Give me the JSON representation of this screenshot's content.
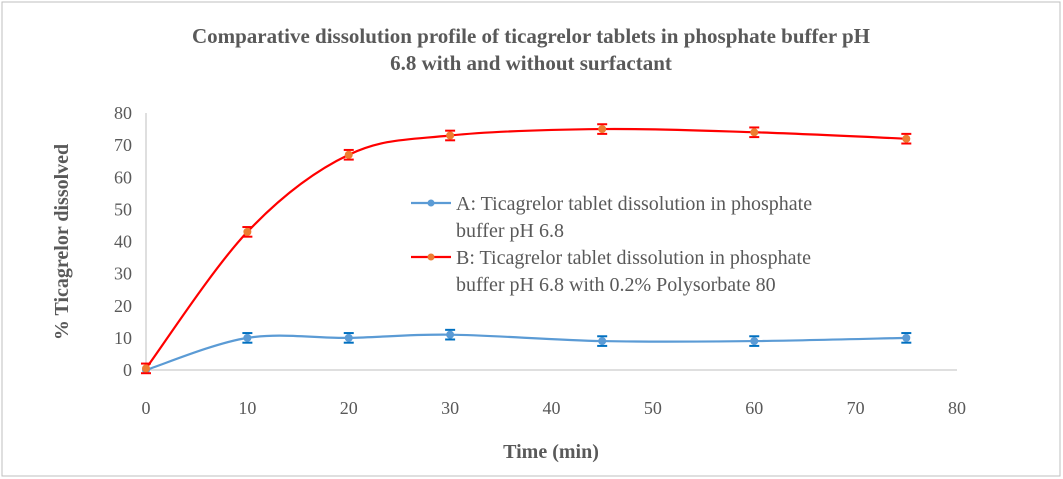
{
  "chart_data": {
    "type": "line",
    "title": "Comparative dissolution profile of ticagrelor tablets in phosphate buffer pH",
    "title_line2": "6.8 with and without surfactant",
    "xlabel": "Time (min)",
    "ylabel": "% Ticagrelor dissolved",
    "xlim": [
      0,
      80
    ],
    "ylim": [
      0,
      80
    ],
    "xticks": [
      0,
      10,
      20,
      30,
      40,
      50,
      60,
      70,
      80
    ],
    "yticks": [
      0,
      10,
      20,
      30,
      40,
      50,
      60,
      70,
      80
    ],
    "grid": false,
    "legend_position": "center-right",
    "smooth": true,
    "series": [
      {
        "name": "A: Ticagrelor tablet dissolution in phosphate",
        "name_line2": "buffer pH 6.8",
        "line_color": "#5B9BD5",
        "marker_color": "#5B9BD5",
        "error_color": "#0070C0",
        "x": [
          0,
          10,
          20,
          30,
          45,
          60,
          75
        ],
        "y": [
          0,
          10,
          10,
          11,
          9,
          9,
          10
        ],
        "yerr": [
          0,
          1.5,
          1.5,
          1.5,
          1.5,
          1.5,
          1.5
        ]
      },
      {
        "name": "B: Ticagrelor tablet dissolution in phosphate",
        "name_line2": "buffer pH 6.8 with 0.2% Polysorbate 80",
        "line_color": "#FF0000",
        "marker_color": "#ED7D31",
        "error_color": "#FF0000",
        "x": [
          0,
          10,
          20,
          30,
          45,
          60,
          75
        ],
        "y": [
          0.5,
          43,
          67,
          73,
          75,
          74,
          72
        ],
        "yerr": [
          1.5,
          1.5,
          1.5,
          1.5,
          1.5,
          1.5,
          1.5
        ]
      }
    ]
  }
}
